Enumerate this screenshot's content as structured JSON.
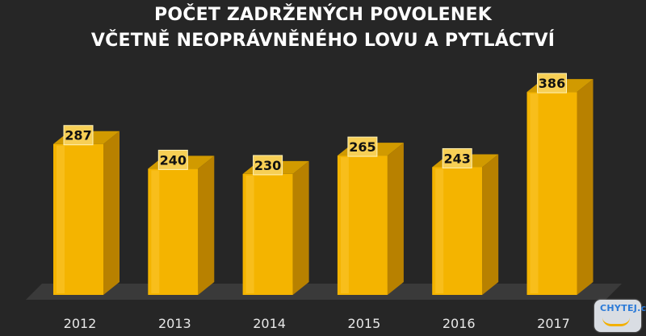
{
  "chart_data": {
    "type": "bar",
    "title_line1": "POČET ZADRŽENÝCH POVOLENEK",
    "title_line2": "VČETNĚ NEOPRÁVNĚNÉHO LOVU A PYTLÁCTVÍ",
    "categories": [
      "2012",
      "2013",
      "2014",
      "2015",
      "2016",
      "2017"
    ],
    "values": [
      287,
      240,
      230,
      265,
      243,
      386
    ],
    "colors": {
      "bar_front": "#f4b400",
      "bar_side": "#b88100",
      "bar_top": "#d19a00",
      "floor": "#3a3a3a"
    }
  },
  "logo": {
    "text": "CHYTEJ.cz"
  }
}
